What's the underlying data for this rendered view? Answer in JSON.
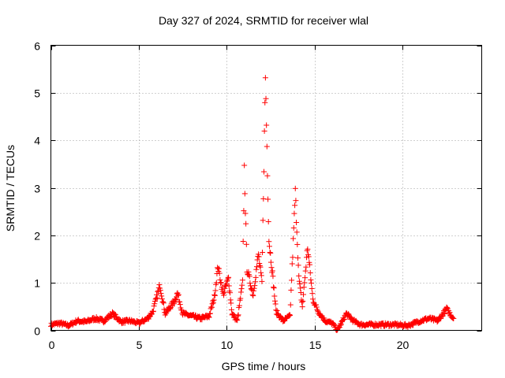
{
  "chart_data": {
    "type": "scatter",
    "title": "Day 327 of 2024, SRMTID for receiver wlal",
    "xlabel": "GPS time / hours",
    "ylabel": "SRMTID / TECUs",
    "xlim": [
      0,
      24.5
    ],
    "ylim": [
      0,
      6
    ],
    "x_ticks": [
      0,
      5,
      10,
      15,
      20
    ],
    "y_ticks": [
      0,
      1,
      2,
      3,
      4,
      5,
      6
    ],
    "x_tick_labels": [
      "0",
      "5",
      "10",
      "15",
      "20"
    ],
    "y_tick_labels": [
      "0",
      "1",
      "2",
      "3",
      "4",
      "5",
      "6"
    ],
    "grid": true,
    "marker": "+",
    "color": "#ff0000",
    "series": [
      {
        "name": "SRMTID",
        "anchors": [
          [
            0.0,
            0.12
          ],
          [
            0.5,
            0.15
          ],
          [
            1.0,
            0.1
          ],
          [
            1.5,
            0.2
          ],
          [
            2.0,
            0.18
          ],
          [
            2.5,
            0.25
          ],
          [
            3.0,
            0.2
          ],
          [
            3.5,
            0.35
          ],
          [
            4.0,
            0.18
          ],
          [
            4.5,
            0.2
          ],
          [
            5.0,
            0.15
          ],
          [
            5.5,
            0.25
          ],
          [
            5.8,
            0.4
          ],
          [
            6.2,
            0.95
          ],
          [
            6.5,
            0.35
          ],
          [
            7.0,
            0.6
          ],
          [
            7.2,
            0.78
          ],
          [
            7.5,
            0.35
          ],
          [
            8.0,
            0.3
          ],
          [
            8.5,
            0.25
          ],
          [
            9.0,
            0.3
          ],
          [
            9.3,
            0.7
          ],
          [
            9.5,
            1.35
          ],
          [
            9.8,
            0.75
          ],
          [
            10.1,
            1.1
          ],
          [
            10.3,
            0.35
          ],
          [
            10.6,
            0.2
          ],
          [
            10.9,
            1.0
          ],
          [
            11.0,
            3.4
          ],
          [
            11.15,
            1.3
          ],
          [
            11.5,
            0.75
          ],
          [
            11.8,
            1.6
          ],
          [
            12.0,
            1.0
          ],
          [
            12.2,
            5.35
          ],
          [
            12.4,
            1.9
          ],
          [
            12.6,
            1.2
          ],
          [
            12.8,
            0.4
          ],
          [
            13.2,
            0.2
          ],
          [
            13.6,
            0.3
          ],
          [
            13.9,
            2.9
          ],
          [
            14.1,
            1.1
          ],
          [
            14.3,
            0.5
          ],
          [
            14.6,
            1.75
          ],
          [
            14.9,
            0.65
          ],
          [
            15.2,
            0.4
          ],
          [
            15.6,
            0.2
          ],
          [
            16.0,
            0.15
          ],
          [
            16.3,
            0.0
          ],
          [
            16.8,
            0.35
          ],
          [
            17.2,
            0.2
          ],
          [
            17.6,
            0.12
          ],
          [
            18.5,
            0.12
          ],
          [
            19.5,
            0.12
          ],
          [
            20.3,
            0.1
          ],
          [
            21.0,
            0.2
          ],
          [
            21.5,
            0.25
          ],
          [
            22.0,
            0.2
          ],
          [
            22.5,
            0.45
          ],
          [
            22.9,
            0.25
          ]
        ]
      }
    ]
  }
}
